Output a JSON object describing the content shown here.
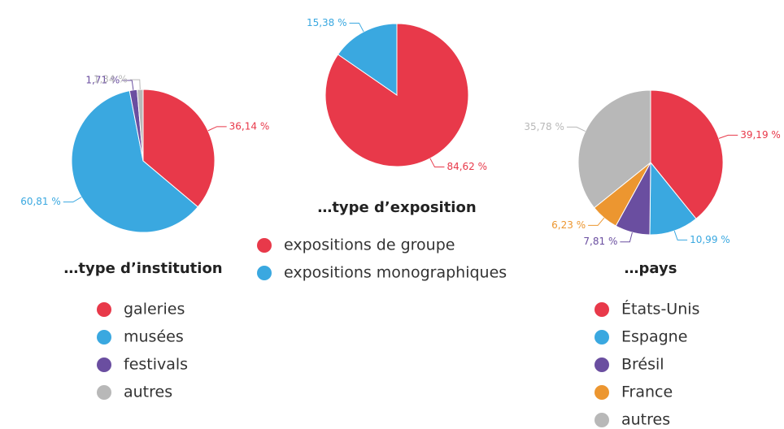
{
  "chart_data": [
    {
      "type": "pie",
      "title": "…type d’institution",
      "categories": [
        "galeries",
        "musées",
        "festivals",
        "autres"
      ],
      "values": [
        36.14,
        60.81,
        1.71,
        1.34
      ],
      "value_labels": [
        "36,14 %",
        "60,81 %",
        "1,71 %",
        "1,34 %"
      ],
      "colors": [
        "#e8394a",
        "#3aa8e0",
        "#6a4ea0",
        "#b8b8b8"
      ]
    },
    {
      "type": "pie",
      "title": "…type d’exposition",
      "categories": [
        "expositions de groupe",
        "expositions monographiques"
      ],
      "values": [
        84.62,
        15.38
      ],
      "value_labels": [
        "84,62 %",
        "15,38 %"
      ],
      "colors": [
        "#e8394a",
        "#3aa8e0"
      ]
    },
    {
      "type": "pie",
      "title": "…pays",
      "categories": [
        "États-Unis",
        "Espagne",
        "Brésil",
        "France",
        "autres"
      ],
      "values": [
        39.19,
        10.99,
        7.81,
        6.23,
        35.78
      ],
      "value_labels": [
        "39,19 %",
        "10,99 %",
        "7,81 %",
        "6,23 %",
        "35,78 %"
      ],
      "colors": [
        "#e8394a",
        "#3aa8e0",
        "#6a4ea0",
        "#ec9630",
        "#b8b8b8"
      ]
    }
  ]
}
